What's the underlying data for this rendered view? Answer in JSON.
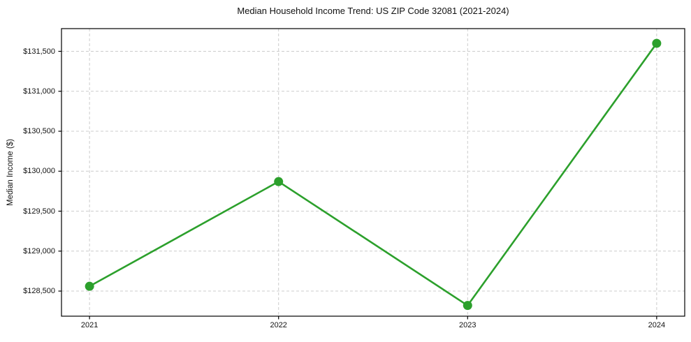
{
  "page": {
    "background_color": "#ffffff"
  },
  "chart_data": {
    "type": "line",
    "title": "Median Household Income Trend: US ZIP Code 32081 (2021-2024)",
    "xlabel": "",
    "ylabel": "Median Income ($)",
    "categories": [
      "2021",
      "2022",
      "2023",
      "2024"
    ],
    "series": [
      {
        "name": "Median Household Income",
        "values": [
          128560,
          129870,
          128320,
          131600
        ]
      }
    ],
    "yticks": [
      {
        "value": 128500,
        "label": "$128,500"
      },
      {
        "value": 129000,
        "label": "$129,000"
      },
      {
        "value": 129500,
        "label": "$129,500"
      },
      {
        "value": 130000,
        "label": "$130,000"
      },
      {
        "value": 130500,
        "label": "$130,500"
      },
      {
        "value": 131000,
        "label": "$131,000"
      },
      {
        "value": 131500,
        "label": "$131,500"
      }
    ],
    "ylim": [
      128186,
      131784
    ],
    "grid": true,
    "grid_style": "dashed",
    "legend_position": "none",
    "line_color": "#2ca02c",
    "marker_color": "#2ca02c",
    "grid_color": "#cccccc",
    "axis_color": "#000000",
    "text_color": "#111111"
  }
}
